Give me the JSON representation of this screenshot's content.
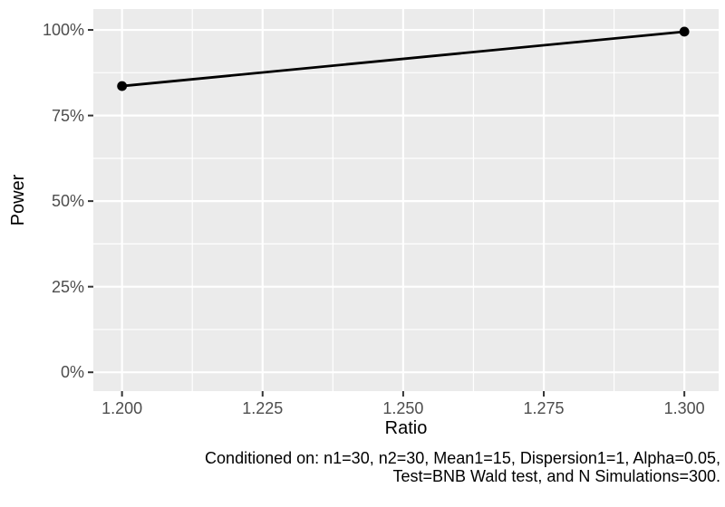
{
  "chart_data": {
    "type": "line",
    "title": "",
    "xlabel": "Ratio",
    "ylabel": "Power",
    "x": [
      1.2,
      1.3
    ],
    "series": [
      {
        "name": "Power",
        "values": [
          0.836,
          0.995
        ]
      }
    ],
    "xlim": [
      1.1949,
      1.3061
    ],
    "ylim": [
      -0.055,
      1.061
    ],
    "x_ticks": {
      "values": [
        1.2,
        1.225,
        1.25,
        1.275,
        1.3
      ],
      "labels": [
        "1.200",
        "1.225",
        "1.250",
        "1.275",
        "1.300"
      ]
    },
    "y_ticks": {
      "values": [
        0,
        0.25,
        0.5,
        0.75,
        1
      ],
      "labels": [
        "0%",
        "25%",
        "50%",
        "75%",
        "100%"
      ]
    },
    "x_minor_ticks": [
      1.2125,
      1.2375,
      1.2625,
      1.2875
    ],
    "y_minor_ticks": [
      0.125,
      0.375,
      0.625,
      0.875
    ],
    "grid": "major+minor",
    "legend": "none",
    "point_shape": "filled-circle"
  },
  "caption": {
    "lines": [
      "Conditioned on: n1=30, n2=30, Mean1=15, Dispersion1=1, Alpha=0.05,",
      "Test=BNB Wald test, and N Simulations=300."
    ]
  },
  "colors": {
    "background": "#FFFFFF",
    "panel_background": "#EBEBEB",
    "gridline": "#FFFFFF",
    "tick_mark": "#333333",
    "axis_text": "#4D4D4D",
    "axis_title": "#000000",
    "series_line": "#000000",
    "point_fill": "#000000",
    "caption_text": "#000000"
  }
}
